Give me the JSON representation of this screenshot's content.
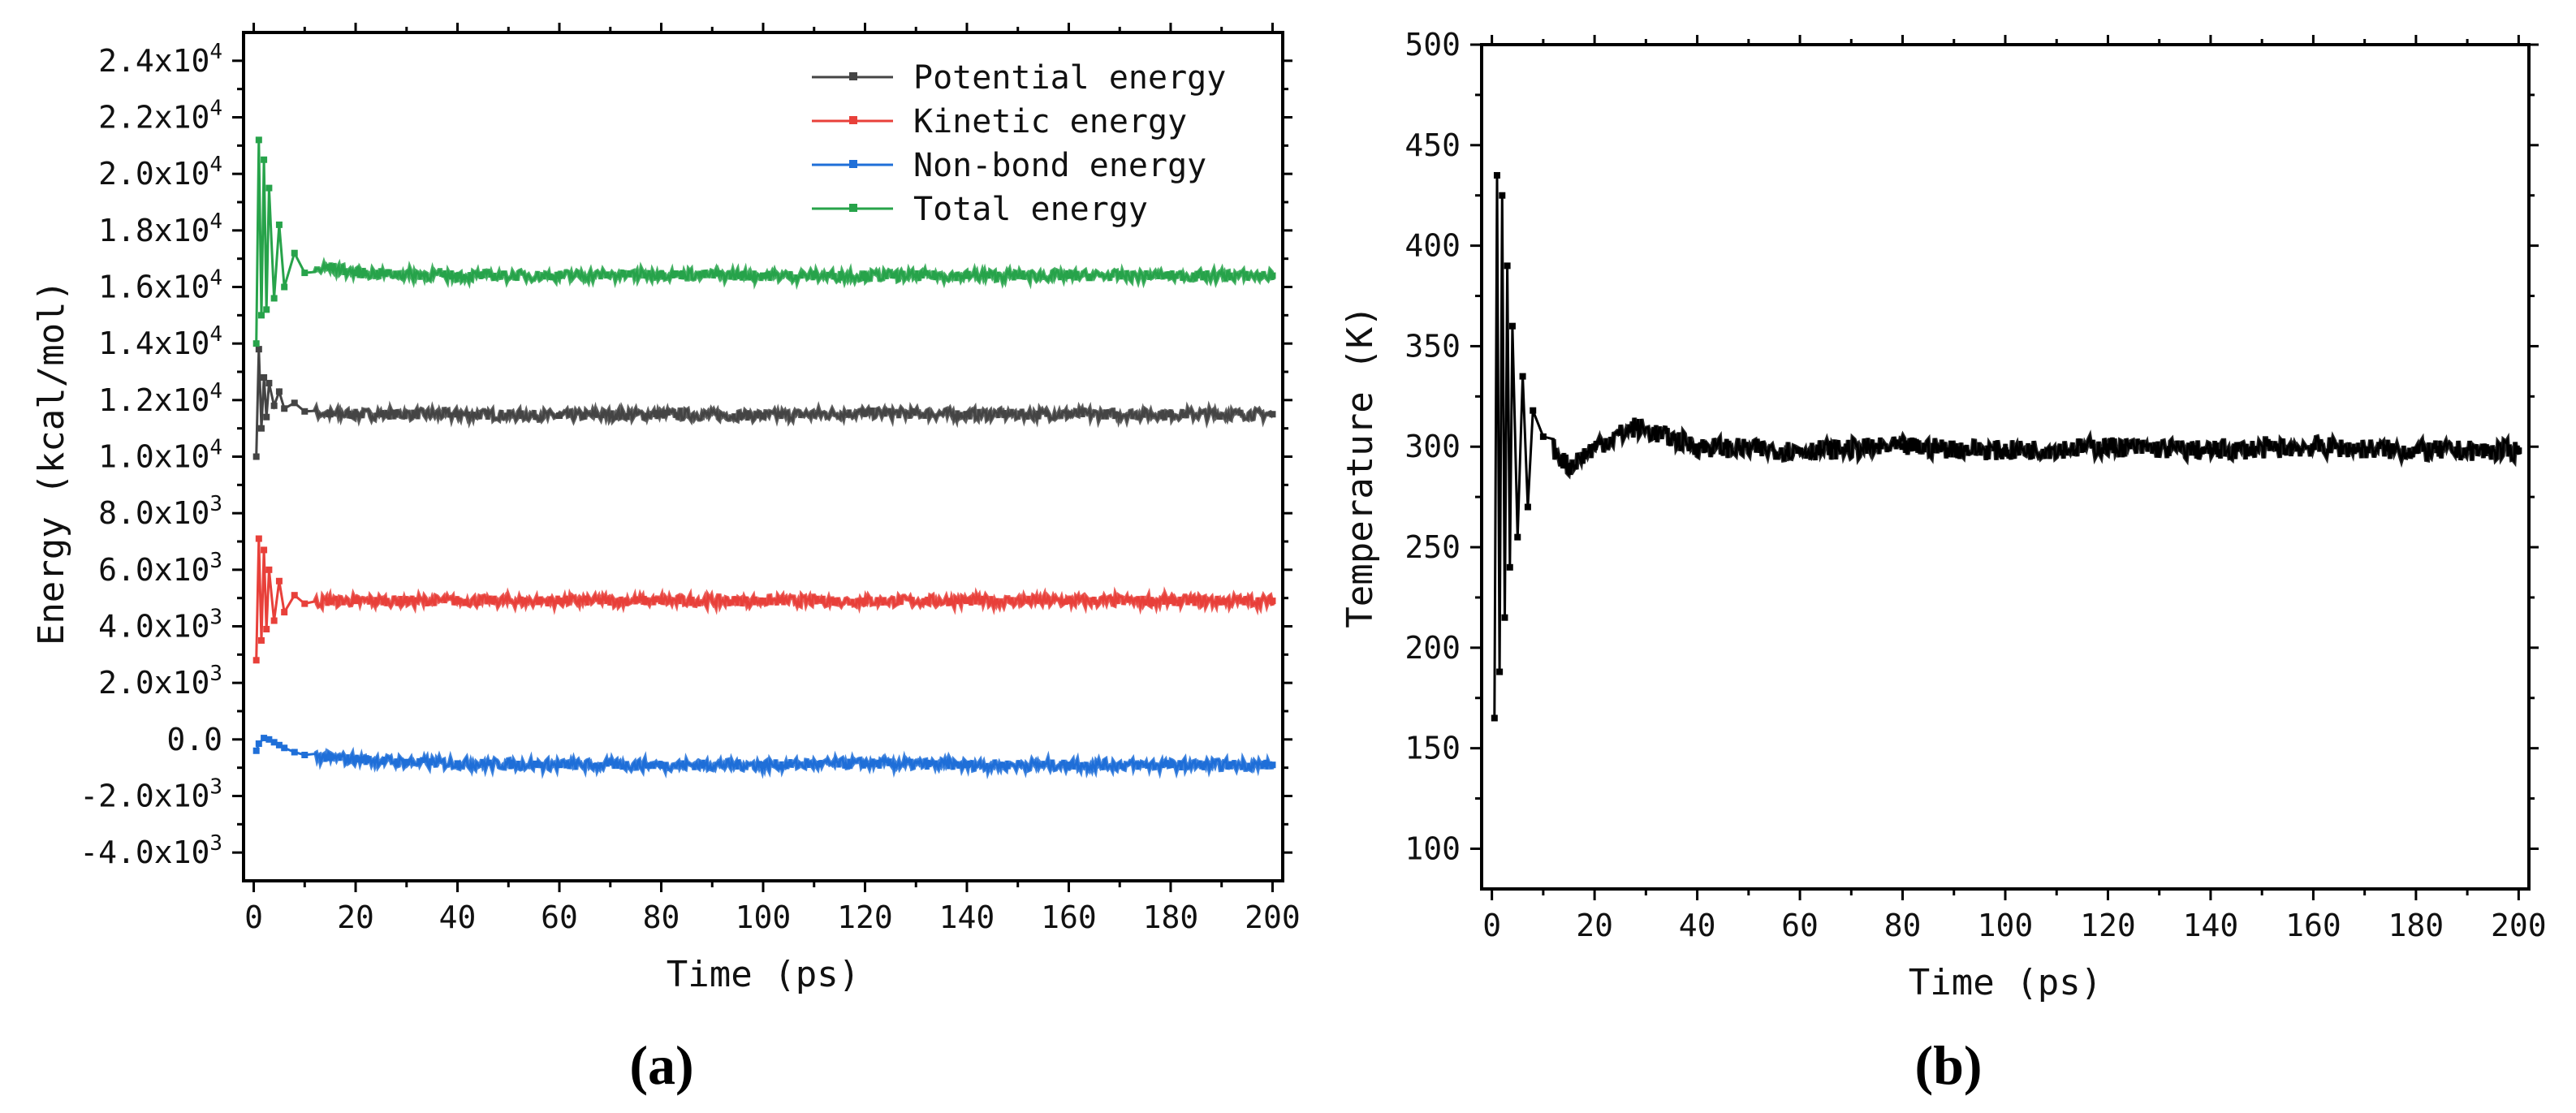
{
  "chart_data": [
    {
      "type": "line",
      "panel_label": "(a)",
      "xlabel": "Time (ps)",
      "ylabel": "Energy (kcal/mol)",
      "xlim": [
        -2,
        202
      ],
      "ylim": [
        -5000,
        25000
      ],
      "xticks": [
        0,
        20,
        40,
        60,
        80,
        100,
        120,
        140,
        160,
        180,
        200
      ],
      "xtick_labels": [
        "0",
        "20",
        "40",
        "60",
        "80",
        "100",
        "120",
        "140",
        "160",
        "180",
        "200"
      ],
      "yticks": [
        -4000,
        -2000,
        0,
        2000,
        4000,
        6000,
        8000,
        10000,
        12000,
        14000,
        16000,
        18000,
        20000,
        22000,
        24000
      ],
      "ytick_labels": [
        {
          "mant": "-4.0x10",
          "exp": "3"
        },
        {
          "mant": "-2.0x10",
          "exp": "3"
        },
        {
          "mant": "0.0",
          "exp": ""
        },
        {
          "mant": "2.0x10",
          "exp": "3"
        },
        {
          "mant": "4.0x10",
          "exp": "3"
        },
        {
          "mant": "6.0x10",
          "exp": "3"
        },
        {
          "mant": "8.0x10",
          "exp": "3"
        },
        {
          "mant": "1.0x10",
          "exp": "4"
        },
        {
          "mant": "1.2x10",
          "exp": "4"
        },
        {
          "mant": "1.4x10",
          "exp": "4"
        },
        {
          "mant": "1.6x10",
          "exp": "4"
        },
        {
          "mant": "1.8x10",
          "exp": "4"
        },
        {
          "mant": "2.0x10",
          "exp": "4"
        },
        {
          "mant": "2.2x10",
          "exp": "4"
        },
        {
          "mant": "2.4x10",
          "exp": "4"
        }
      ],
      "legend_position": "top-right",
      "series": [
        {
          "name": "Potential energy",
          "color": "#444444",
          "marker": "square",
          "x": [
            0.5,
            1,
            1.5,
            2,
            2.5,
            3,
            4,
            5,
            6,
            8,
            10,
            15,
            20,
            40,
            60,
            80,
            100,
            120,
            140,
            160,
            180,
            200
          ],
          "values": [
            10000,
            13800,
            11000,
            12800,
            11400,
            12600,
            11800,
            12300,
            11700,
            11900,
            11600,
            11500,
            11500,
            11500,
            11450,
            11500,
            11450,
            11550,
            11500,
            11500,
            11500,
            11500
          ]
        },
        {
          "name": "Kinetic energy",
          "color": "#e8403a",
          "marker": "circle",
          "x": [
            0.5,
            1,
            1.5,
            2,
            2.5,
            3,
            4,
            5,
            6,
            8,
            10,
            15,
            20,
            40,
            60,
            80,
            100,
            120,
            140,
            160,
            180,
            200
          ],
          "values": [
            2800,
            7100,
            3500,
            6700,
            3900,
            6000,
            4200,
            5600,
            4500,
            5100,
            4800,
            4900,
            4900,
            4900,
            4900,
            4900,
            4900,
            4900,
            4900,
            4900,
            4900,
            4900
          ]
        },
        {
          "name": "Non-bond energy",
          "color": "#1f6fd8",
          "marker": "triangle-up",
          "x": [
            0.5,
            1,
            2,
            3,
            4,
            5,
            6,
            8,
            10,
            15,
            20,
            30,
            40,
            60,
            80,
            100,
            120,
            140,
            160,
            180,
            200
          ],
          "values": [
            -400,
            -150,
            50,
            0,
            -100,
            -200,
            -300,
            -450,
            -550,
            -650,
            -700,
            -800,
            -850,
            -900,
            -900,
            -900,
            -850,
            -900,
            -900,
            -900,
            -900
          ]
        },
        {
          "name": "Total energy",
          "color": "#27a34a",
          "marker": "triangle-down",
          "x": [
            0.5,
            1,
            1.5,
            2,
            2.5,
            3,
            4,
            5,
            6,
            8,
            10,
            15,
            20,
            40,
            60,
            80,
            100,
            120,
            140,
            160,
            180,
            200
          ],
          "values": [
            14000,
            21200,
            15000,
            20500,
            15200,
            19500,
            15600,
            18200,
            16000,
            17200,
            16500,
            16700,
            16500,
            16400,
            16400,
            16450,
            16400,
            16400,
            16400,
            16400,
            16400,
            16400
          ]
        }
      ]
    },
    {
      "type": "line",
      "panel_label": "(b)",
      "xlabel": "Time (ps)",
      "ylabel": "Temperature (K)",
      "xlim": [
        -2,
        202
      ],
      "ylim": [
        80,
        500
      ],
      "xticks": [
        0,
        20,
        40,
        60,
        80,
        100,
        120,
        140,
        160,
        180,
        200
      ],
      "xtick_labels": [
        "0",
        "20",
        "40",
        "60",
        "80",
        "100",
        "120",
        "140",
        "160",
        "180",
        "200"
      ],
      "yticks": [
        100,
        150,
        200,
        250,
        300,
        350,
        400,
        450,
        500
      ],
      "ytick_labels": [
        "100",
        "150",
        "200",
        "250",
        "300",
        "350",
        "400",
        "450",
        "500"
      ],
      "series": [
        {
          "name": "Temperature",
          "color": "#000000",
          "marker": "square",
          "x": [
            0.5,
            1,
            1.5,
            2,
            2.5,
            3,
            3.5,
            4,
            5,
            6,
            7,
            8,
            10,
            15,
            20,
            28,
            40,
            60,
            80,
            100,
            120,
            140,
            160,
            180,
            200
          ],
          "values": [
            165,
            435,
            188,
            425,
            215,
            390,
            240,
            360,
            255,
            335,
            270,
            318,
            305,
            290,
            300,
            310,
            300,
            298,
            300,
            298,
            300,
            298,
            300,
            298,
            298
          ]
        }
      ]
    }
  ]
}
